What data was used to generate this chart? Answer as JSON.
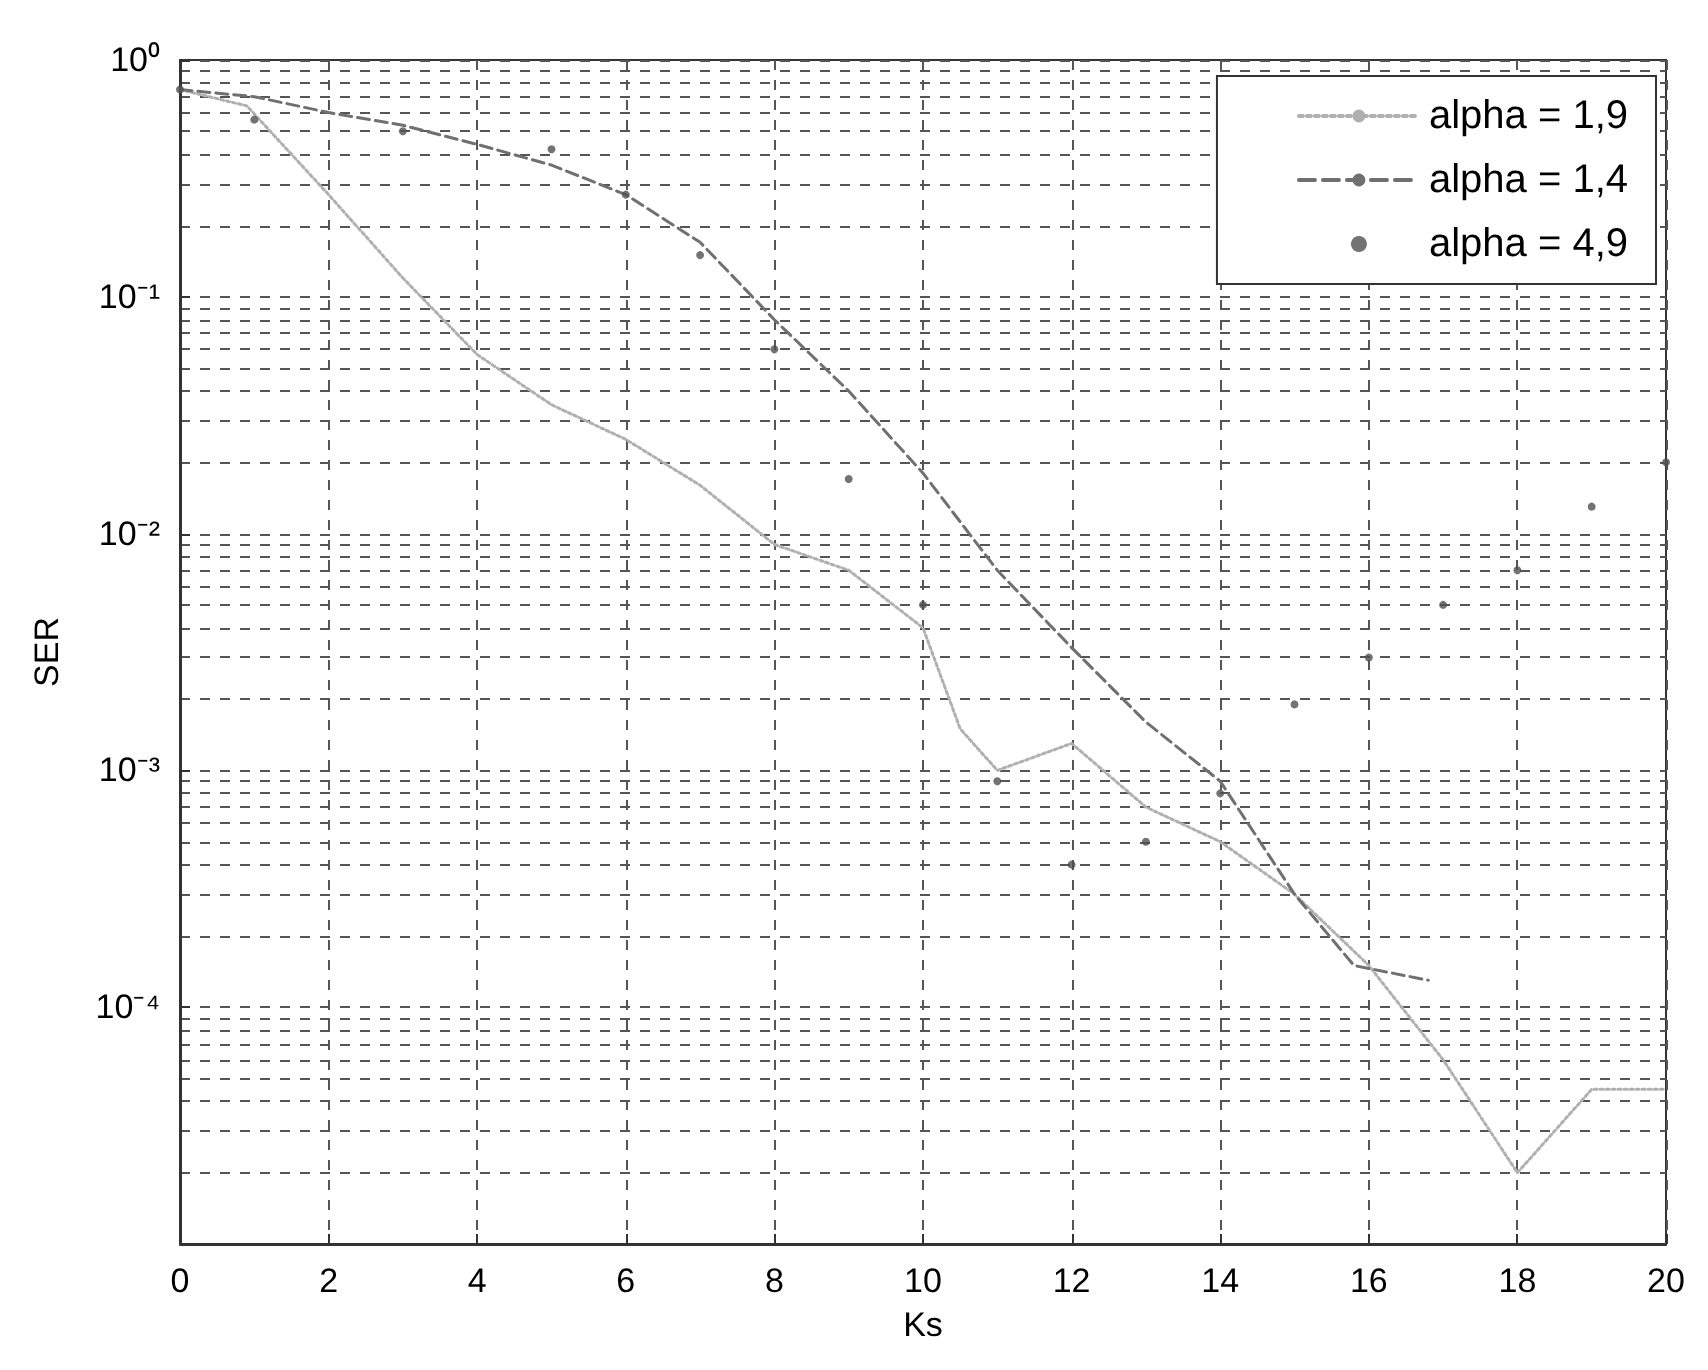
{
  "chart_data": {
    "type": "line",
    "xlabel": "Ks",
    "ylabel": "SER",
    "log": "y",
    "grid": true,
    "legend": "top right",
    "xlim": [
      0,
      20
    ],
    "xticks": [
      0,
      2,
      4,
      6,
      8,
      10,
      12,
      14,
      16,
      18,
      20
    ],
    "ylim": [
      1e-05,
      1
    ],
    "yticks": [
      {
        "value": 1e-05,
        "label": null
      },
      {
        "value": 0.0001,
        "label": "10⁻⁴"
      },
      {
        "value": 0.001,
        "label": "10⁻³"
      },
      {
        "value": 0.01,
        "label": "10⁻²"
      },
      {
        "value": 0.1,
        "label": "10⁻¹"
      },
      {
        "value": 1,
        "label": "10⁰"
      }
    ],
    "series": [
      {
        "name": "alpha = 1,9",
        "color": "#b0b0b0",
        "line_style": "dotted",
        "marker": "none",
        "x": [
          0,
          0.9,
          2,
          3,
          4,
          5,
          6,
          7,
          8,
          9,
          10,
          10.5,
          11,
          12,
          13,
          14,
          15,
          16,
          17,
          18,
          19,
          20
        ],
        "values": [
          0.75,
          0.64,
          0.27,
          0.12,
          0.057,
          0.035,
          0.025,
          0.016,
          0.009,
          0.007,
          0.004,
          0.0015,
          0.001,
          0.0013,
          0.0007,
          0.0005,
          0.0003,
          0.00015,
          6e-05,
          2e-05,
          4.5e-05,
          4.5e-05
        ]
      },
      {
        "name": "alpha = 1,4",
        "color": "#707070",
        "line_style": "dashed",
        "marker": "none",
        "x": [
          0,
          1,
          2,
          3,
          4,
          5,
          6,
          7,
          8,
          9,
          10,
          11,
          12,
          13,
          14,
          15,
          15.8,
          16.8
        ],
        "values": [
          0.75,
          0.7,
          0.6,
          0.53,
          0.44,
          0.36,
          0.27,
          0.17,
          0.08,
          0.04,
          0.018,
          0.007,
          0.0033,
          0.0016,
          0.0009,
          0.0003,
          0.00015,
          0.00013
        ]
      },
      {
        "name": "alpha = 4,9",
        "color": "#505050",
        "type": "scatter",
        "marker": "circle",
        "x": [
          0,
          1,
          3,
          5,
          6,
          7,
          8,
          9,
          10,
          11,
          12,
          13,
          14,
          15,
          16,
          17,
          18,
          19,
          20
        ],
        "values": [
          0.75,
          0.56,
          0.5,
          0.42,
          0.27,
          0.15,
          0.06,
          0.017,
          0.005,
          0.0009,
          0.0004,
          0.0005,
          0.0008,
          0.0019,
          0.003,
          0.005,
          0.007,
          0.013,
          0.02
        ]
      }
    ]
  }
}
